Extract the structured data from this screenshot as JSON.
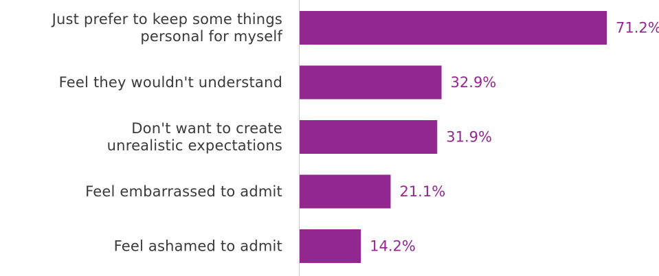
{
  "chart_data": {
    "type": "bar",
    "orientation": "horizontal",
    "categories": [
      [
        "Just prefer to keep some things",
        "personal for myself"
      ],
      [
        "Feel they wouldn't understand"
      ],
      [
        "Don't want to create",
        "unrealistic expectations"
      ],
      [
        "Feel embarrassed to admit"
      ],
      [
        "Feel ashamed to admit"
      ]
    ],
    "values": [
      71.2,
      32.9,
      31.9,
      21.1,
      14.2
    ],
    "value_labels": [
      "71.2%",
      "32.9%",
      "31.9%",
      "21.1%",
      "14.2%"
    ],
    "xlim": [
      0,
      80
    ],
    "grid": false,
    "legend": "none",
    "bar_color": "#92278f",
    "value_label_color": "#92278f",
    "axis_color": "#cccccc"
  }
}
